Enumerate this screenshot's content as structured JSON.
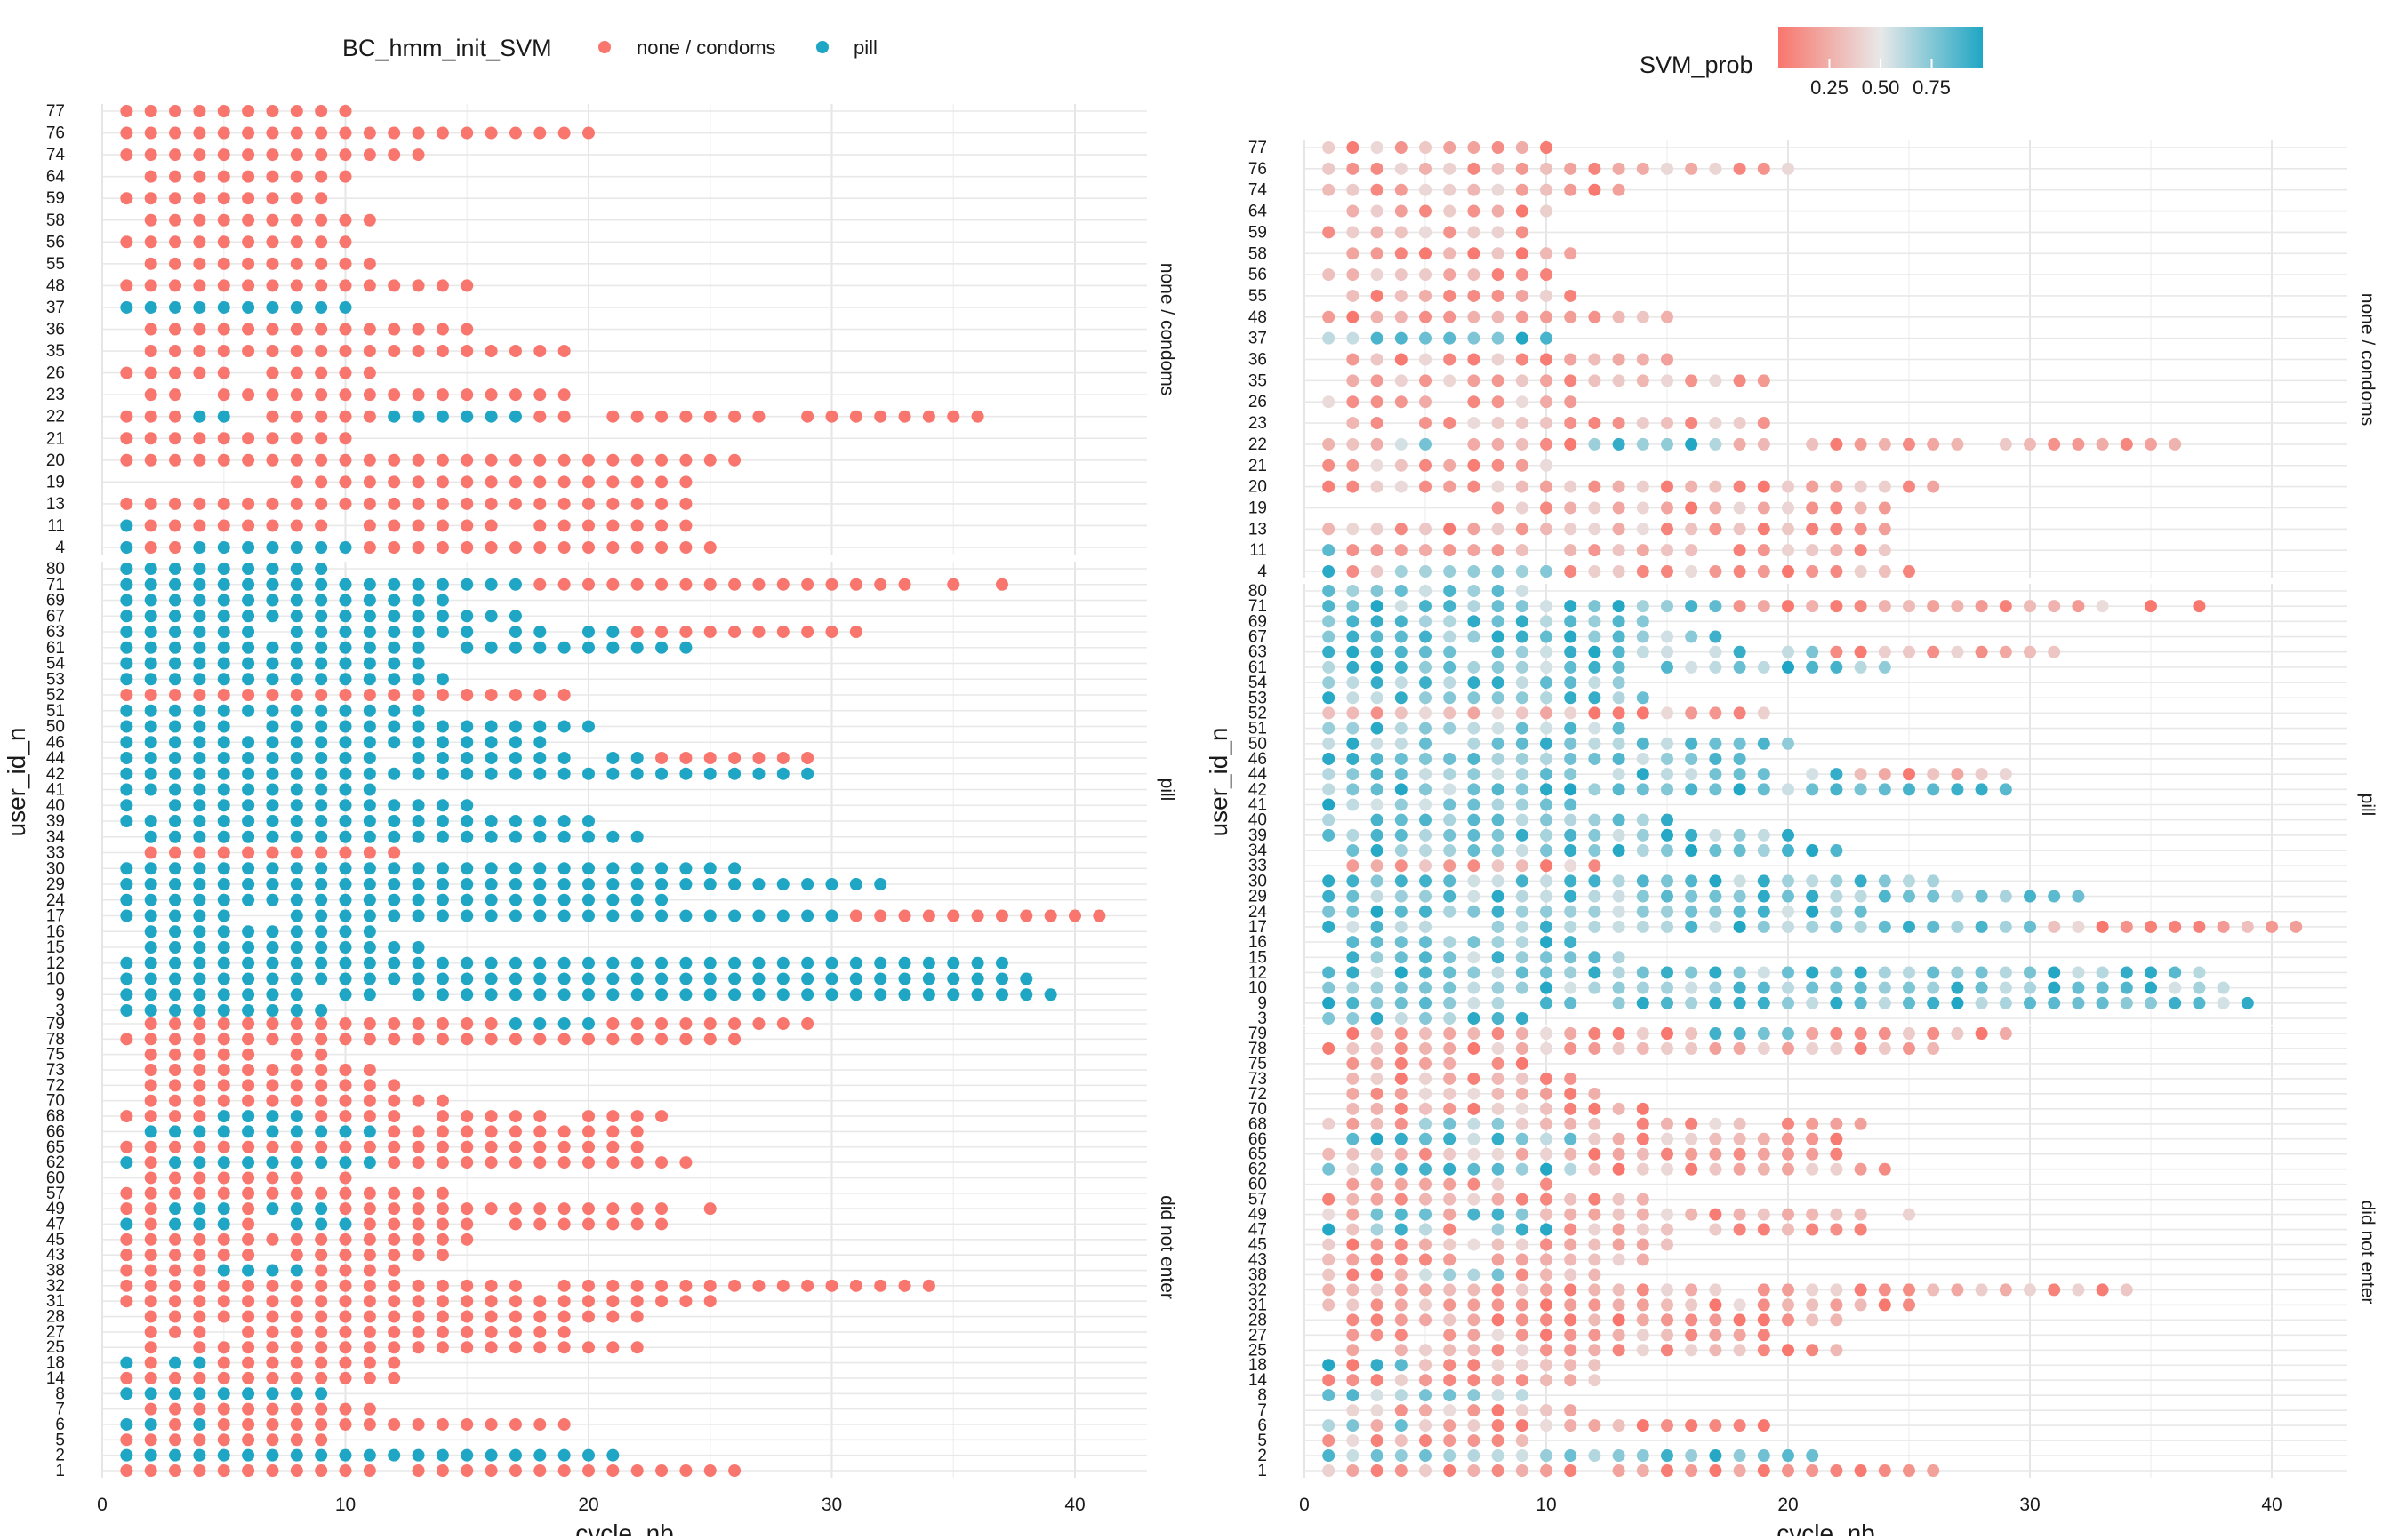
{
  "chart_data": [
    {
      "type": "scatter",
      "xlabel": "cycle_nb",
      "ylabel": "user_id_n",
      "xlim": [
        0,
        43
      ],
      "x_ticks": [
        0,
        10,
        20,
        30,
        40
      ],
      "grid": true,
      "legend": {
        "position": "top",
        "title": "BC_hmm_init_SVM",
        "entries": [
          "none / condoms",
          "pill"
        ]
      },
      "colors": {
        "none / condoms": "#F8766D",
        "pill": "#1FA6C4"
      },
      "facets": [
        {
          "label": "none / condoms",
          "users": [
            "77",
            "76",
            "74",
            "64",
            "59",
            "58",
            "56",
            "55",
            "48",
            "37",
            "36",
            "35",
            "26",
            "23",
            "22",
            "21",
            "20",
            "19",
            "13",
            "11",
            "4"
          ]
        },
        {
          "label": "pill",
          "users": [
            "80",
            "71",
            "69",
            "67",
            "63",
            "61",
            "54",
            "53",
            "52",
            "51",
            "50",
            "46",
            "44",
            "42",
            "41",
            "40",
            "39",
            "34",
            "33",
            "30",
            "29",
            "24",
            "17",
            "16",
            "15",
            "12",
            "10",
            "9",
            "3"
          ]
        },
        {
          "label": "did not enter",
          "users": [
            "79",
            "78",
            "75",
            "73",
            "72",
            "70",
            "68",
            "66",
            "65",
            "62",
            "60",
            "57",
            "49",
            "47",
            "45",
            "43",
            "38",
            "32",
            "31",
            "28",
            "27",
            "25",
            "18",
            "14",
            "8",
            "7",
            "6",
            "5",
            "2",
            "1"
          ]
        }
      ]
    },
    {
      "type": "scatter",
      "xlabel": "cycle_nb",
      "ylabel": "user_id_n",
      "xlim": [
        0,
        43
      ],
      "x_ticks": [
        0,
        10,
        20,
        30,
        40
      ],
      "grid": true,
      "legend": {
        "position": "top",
        "title": "SVM_prob",
        "type": "gradient",
        "range": [
          0.0,
          1.0
        ],
        "ticks": [
          "0.25",
          "0.50",
          "0.75"
        ],
        "low_color": "#F8766D",
        "mid_color": "#E8E8E8",
        "high_color": "#1FA6C4"
      },
      "facets": [
        {
          "label": "none / condoms",
          "users": [
            "77",
            "76",
            "74",
            "64",
            "59",
            "58",
            "56",
            "55",
            "48",
            "37",
            "36",
            "35",
            "26",
            "23",
            "22",
            "21",
            "20",
            "19",
            "13",
            "11",
            "4"
          ]
        },
        {
          "label": "pill",
          "users": [
            "80",
            "71",
            "69",
            "67",
            "63",
            "61",
            "54",
            "53",
            "52",
            "51",
            "50",
            "46",
            "44",
            "42",
            "41",
            "40",
            "39",
            "34",
            "33",
            "30",
            "29",
            "24",
            "17",
            "16",
            "15",
            "12",
            "10",
            "9",
            "3"
          ]
        },
        {
          "label": "did not enter",
          "users": [
            "79",
            "78",
            "75",
            "73",
            "72",
            "70",
            "68",
            "66",
            "65",
            "62",
            "60",
            "57",
            "49",
            "47",
            "45",
            "43",
            "38",
            "32",
            "31",
            "28",
            "27",
            "25",
            "18",
            "14",
            "8",
            "7",
            "6",
            "5",
            "2",
            "1"
          ]
        }
      ]
    }
  ],
  "user_cycles": {
    "77": [
      1,
      10
    ],
    "76": [
      1,
      20
    ],
    "74": [
      1,
      13
    ],
    "64": [
      2,
      10
    ],
    "59": [
      1,
      9
    ],
    "58": [
      2,
      11
    ],
    "56": [
      1,
      10
    ],
    "55": [
      2,
      11
    ],
    "48": [
      1,
      15
    ],
    "37": [
      1,
      10
    ],
    "36": [
      2,
      15
    ],
    "35": [
      2,
      19
    ],
    "26": [
      1,
      11
    ],
    "23": [
      2,
      19
    ],
    "22": [
      1,
      36
    ],
    "21": [
      1,
      10
    ],
    "20": [
      1,
      26
    ],
    "19": [
      8,
      24
    ],
    "13": [
      1,
      24
    ],
    "11": [
      1,
      24
    ],
    "4": [
      1,
      25
    ],
    "80": [
      1,
      9
    ],
    "71": [
      1,
      37
    ],
    "69": [
      1,
      14
    ],
    "67": [
      1,
      17
    ],
    "63": [
      1,
      31
    ],
    "61": [
      1,
      24
    ],
    "54": [
      1,
      13
    ],
    "53": [
      1,
      14
    ],
    "52": [
      1,
      19
    ],
    "51": [
      1,
      13
    ],
    "50": [
      1,
      20
    ],
    "46": [
      1,
      18
    ],
    "44": [
      1,
      29
    ],
    "42": [
      1,
      29
    ],
    "41": [
      1,
      11
    ],
    "40": [
      1,
      15
    ],
    "39": [
      1,
      20
    ],
    "34": [
      2,
      22
    ],
    "33": [
      2,
      12
    ],
    "30": [
      1,
      26
    ],
    "29": [
      1,
      32
    ],
    "24": [
      1,
      23
    ],
    "17": [
      1,
      41
    ],
    "16": [
      2,
      11
    ],
    "15": [
      2,
      13
    ],
    "12": [
      1,
      37
    ],
    "10": [
      1,
      38
    ],
    "9": [
      1,
      39
    ],
    "3": [
      1,
      9
    ],
    "79": [
      2,
      29
    ],
    "78": [
      1,
      26
    ],
    "75": [
      2,
      9
    ],
    "73": [
      2,
      11
    ],
    "72": [
      2,
      12
    ],
    "70": [
      2,
      14
    ],
    "68": [
      1,
      23
    ],
    "66": [
      2,
      22
    ],
    "65": [
      1,
      22
    ],
    "62": [
      1,
      24
    ],
    "60": [
      2,
      10
    ],
    "57": [
      1,
      14
    ],
    "49": [
      1,
      25
    ],
    "47": [
      1,
      23
    ],
    "45": [
      1,
      15
    ],
    "43": [
      1,
      14
    ],
    "38": [
      1,
      12
    ],
    "32": [
      1,
      34
    ],
    "31": [
      1,
      25
    ],
    "28": [
      2,
      22
    ],
    "27": [
      2,
      19
    ],
    "25": [
      2,
      22
    ],
    "18": [
      1,
      12
    ],
    "14": [
      1,
      12
    ],
    "8": [
      1,
      9
    ],
    "7": [
      2,
      11
    ],
    "6": [
      1,
      19
    ],
    "5": [
      1,
      9
    ],
    "2": [
      1,
      21
    ],
    "1": [
      1,
      26
    ]
  },
  "pill_users_main": [
    "80",
    "71",
    "69",
    "67",
    "63",
    "61",
    "54",
    "53",
    "51",
    "50",
    "46",
    "44",
    "42",
    "41",
    "40",
    "39",
    "34",
    "30",
    "29",
    "24",
    "17",
    "16",
    "15",
    "12",
    "10",
    "9",
    "3"
  ],
  "pill_to_none_switch": {
    "71": 18,
    "63": 22,
    "44": 23,
    "17": 31
  },
  "none_to_pill_cycles": {
    "37": "all",
    "22": [
      4,
      5,
      6,
      12,
      13,
      14,
      15,
      16,
      17
    ],
    "11": [
      1,
      10
    ],
    "4": [
      1,
      4,
      5,
      6,
      7,
      8,
      9,
      10
    ],
    "79": [
      17,
      18,
      19,
      20
    ],
    "68": [
      5,
      6,
      7,
      8
    ],
    "66": [
      2,
      3,
      4,
      5,
      6,
      7,
      8,
      9,
      10,
      11
    ],
    "62": [
      1,
      3,
      4,
      5,
      6,
      7,
      8,
      9,
      10,
      11
    ],
    "49": [
      3,
      4,
      5,
      7,
      8,
      9
    ],
    "47": [
      1,
      3,
      4,
      5,
      8,
      9,
      10
    ],
    "38": [
      5,
      6,
      7,
      8
    ],
    "18": [
      1,
      3,
      4
    ],
    "8": "all",
    "6": [
      1,
      2,
      4
    ],
    "2": "all"
  }
}
